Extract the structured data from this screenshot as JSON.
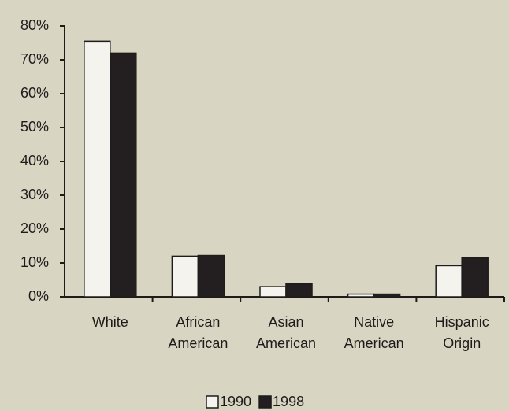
{
  "chart_data": {
    "type": "bar",
    "categories": [
      "White",
      "African American",
      "Asian American",
      "Native American",
      "Hispanic Origin"
    ],
    "series": [
      {
        "name": "1990",
        "color": "#f4f3ee",
        "values": [
          75.5,
          12,
          3,
          0.8,
          9.2
        ]
      },
      {
        "name": "1998",
        "color": "#231f20",
        "values": [
          72,
          12.2,
          3.8,
          0.8,
          11.5
        ]
      }
    ],
    "ylim": [
      0,
      80
    ],
    "yticks": [
      {
        "value": 0,
        "label": "0%"
      },
      {
        "value": 10,
        "label": "10%"
      },
      {
        "value": 20,
        "label": "20%"
      },
      {
        "value": 30,
        "label": "30%"
      },
      {
        "value": 40,
        "label": "40%"
      },
      {
        "value": 50,
        "label": "50%"
      },
      {
        "value": 60,
        "label": "60%"
      },
      {
        "value": 70,
        "label": "70%"
      },
      {
        "value": 80,
        "label": "80%"
      }
    ],
    "grid": false,
    "legend": "bottom"
  }
}
